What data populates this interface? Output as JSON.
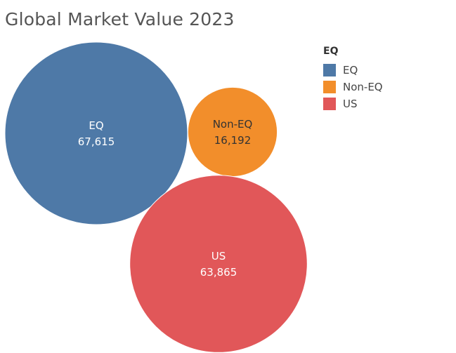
{
  "chart_data": {
    "type": "bubble",
    "title": "Global Market Value 2023",
    "legend": {
      "title": "EQ",
      "placement": "top-right"
    },
    "categories": [
      "EQ",
      "Non-EQ",
      "US"
    ],
    "values": [
      67615,
      16192,
      63865
    ],
    "value_labels": [
      "67,615",
      "16,192",
      "63,865"
    ],
    "colors": [
      "#4e79a7",
      "#f28e2b",
      "#e15759"
    ],
    "label_colors": [
      "#ffffff",
      "#333333",
      "#ffffff"
    ]
  }
}
